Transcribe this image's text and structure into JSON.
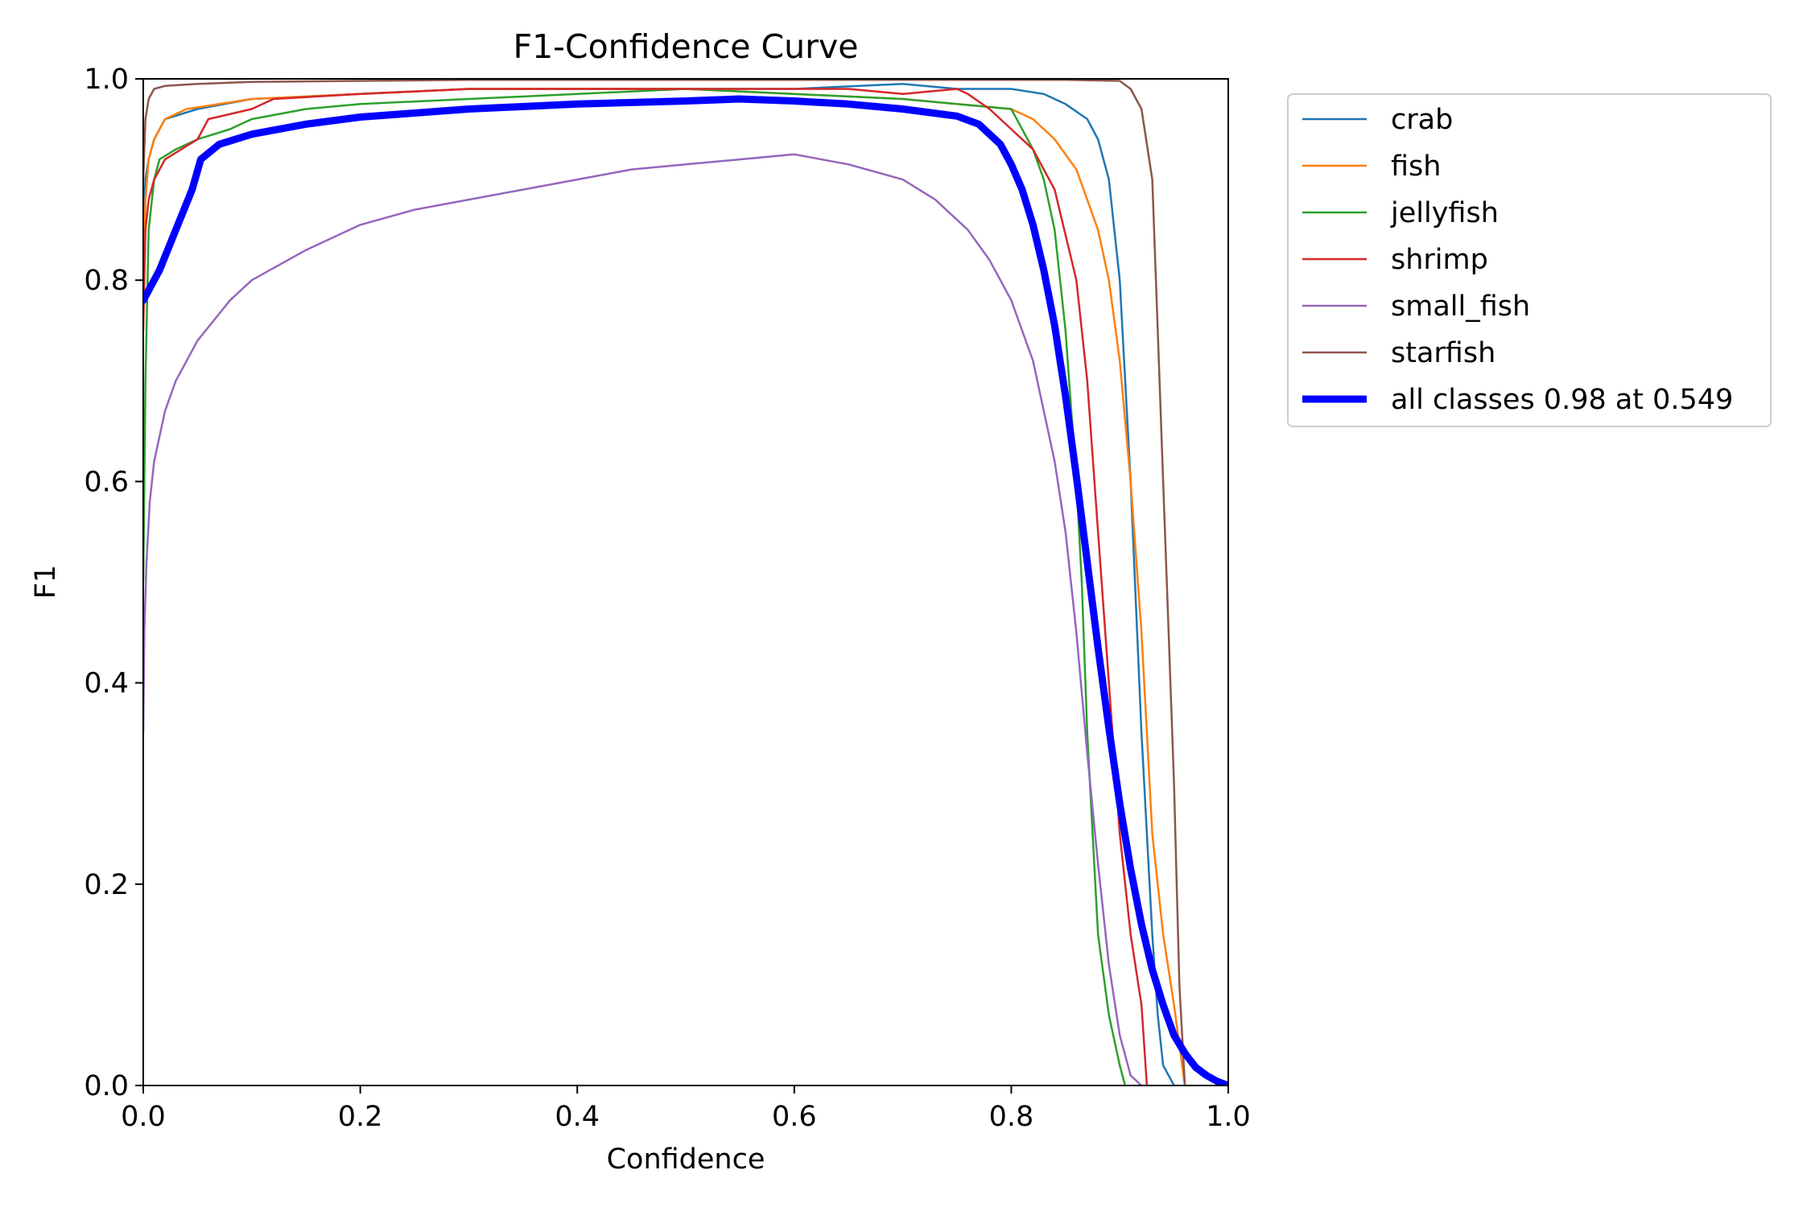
{
  "chart_data": {
    "type": "line",
    "title": "F1-Confidence Curve",
    "xlabel": "Confidence",
    "ylabel": "F1",
    "xlim": [
      0.0,
      1.0
    ],
    "ylim": [
      0.0,
      1.0
    ],
    "xticks": [
      "0.0",
      "0.2",
      "0.4",
      "0.6",
      "0.8",
      "1.0"
    ],
    "yticks": [
      "0.0",
      "0.2",
      "0.4",
      "0.6",
      "0.8",
      "1.0"
    ],
    "grid": false,
    "legend_position": "outside-top-right",
    "series": [
      {
        "name": "crab",
        "color": "#1f77b4",
        "x": [
          0.0,
          0.002,
          0.005,
          0.01,
          0.02,
          0.05,
          0.1,
          0.2,
          0.3,
          0.4,
          0.5,
          0.6,
          0.7,
          0.75,
          0.8,
          0.83,
          0.85,
          0.87,
          0.88,
          0.89,
          0.9,
          0.91,
          0.92,
          0.93,
          0.935,
          0.94,
          0.945,
          0.95
        ],
        "y": [
          0.85,
          0.9,
          0.92,
          0.94,
          0.96,
          0.97,
          0.98,
          0.985,
          0.99,
          0.99,
          0.99,
          0.99,
          0.995,
          0.99,
          0.99,
          0.985,
          0.975,
          0.96,
          0.94,
          0.9,
          0.8,
          0.6,
          0.35,
          0.15,
          0.07,
          0.02,
          0.01,
          0.0
        ]
      },
      {
        "name": "fish",
        "color": "#ff7f0e",
        "x": [
          0.0,
          0.002,
          0.005,
          0.01,
          0.02,
          0.04,
          0.1,
          0.2,
          0.3,
          0.4,
          0.5,
          0.6,
          0.7,
          0.75,
          0.8,
          0.82,
          0.84,
          0.86,
          0.87,
          0.88,
          0.89,
          0.9,
          0.91,
          0.92,
          0.93,
          0.94,
          0.95,
          0.955,
          0.96
        ],
        "y": [
          0.8,
          0.88,
          0.92,
          0.94,
          0.96,
          0.97,
          0.98,
          0.985,
          0.99,
          0.99,
          0.99,
          0.985,
          0.98,
          0.975,
          0.97,
          0.96,
          0.94,
          0.91,
          0.88,
          0.85,
          0.8,
          0.72,
          0.6,
          0.45,
          0.25,
          0.15,
          0.08,
          0.04,
          0.0
        ]
      },
      {
        "name": "jellyfish",
        "color": "#2ca02c",
        "x": [
          0.0,
          0.002,
          0.005,
          0.01,
          0.015,
          0.03,
          0.05,
          0.08,
          0.1,
          0.15,
          0.2,
          0.3,
          0.4,
          0.5,
          0.6,
          0.7,
          0.75,
          0.8,
          0.81,
          0.82,
          0.83,
          0.84,
          0.85,
          0.86,
          0.865,
          0.87,
          0.875,
          0.88,
          0.89,
          0.9,
          0.905
        ],
        "y": [
          0.5,
          0.7,
          0.85,
          0.9,
          0.92,
          0.93,
          0.94,
          0.95,
          0.96,
          0.97,
          0.975,
          0.98,
          0.985,
          0.99,
          0.985,
          0.98,
          0.975,
          0.97,
          0.95,
          0.93,
          0.9,
          0.85,
          0.75,
          0.6,
          0.5,
          0.35,
          0.25,
          0.15,
          0.07,
          0.02,
          0.0
        ]
      },
      {
        "name": "shrimp",
        "color": "#d62728",
        "x": [
          0.0,
          0.002,
          0.005,
          0.01,
          0.02,
          0.05,
          0.06,
          0.1,
          0.12,
          0.2,
          0.3,
          0.4,
          0.5,
          0.6,
          0.65,
          0.7,
          0.75,
          0.76,
          0.78,
          0.8,
          0.82,
          0.84,
          0.86,
          0.87,
          0.88,
          0.89,
          0.9,
          0.91,
          0.92,
          0.925
        ],
        "y": [
          0.75,
          0.85,
          0.88,
          0.9,
          0.92,
          0.94,
          0.96,
          0.97,
          0.98,
          0.985,
          0.99,
          0.99,
          0.99,
          0.99,
          0.99,
          0.985,
          0.99,
          0.985,
          0.97,
          0.95,
          0.93,
          0.89,
          0.8,
          0.7,
          0.55,
          0.4,
          0.25,
          0.15,
          0.08,
          0.0
        ]
      },
      {
        "name": "small_fish",
        "color": "#9467bd",
        "x": [
          0.0,
          0.001,
          0.003,
          0.006,
          0.01,
          0.02,
          0.03,
          0.05,
          0.08,
          0.1,
          0.15,
          0.2,
          0.25,
          0.3,
          0.35,
          0.4,
          0.45,
          0.5,
          0.55,
          0.6,
          0.65,
          0.7,
          0.73,
          0.76,
          0.78,
          0.8,
          0.82,
          0.84,
          0.85,
          0.86,
          0.87,
          0.88,
          0.89,
          0.9,
          0.91,
          0.92
        ],
        "y": [
          0.35,
          0.45,
          0.52,
          0.58,
          0.62,
          0.67,
          0.7,
          0.74,
          0.78,
          0.8,
          0.83,
          0.855,
          0.87,
          0.88,
          0.89,
          0.9,
          0.91,
          0.915,
          0.92,
          0.925,
          0.915,
          0.9,
          0.88,
          0.85,
          0.82,
          0.78,
          0.72,
          0.62,
          0.55,
          0.45,
          0.33,
          0.22,
          0.12,
          0.05,
          0.01,
          0.0
        ]
      },
      {
        "name": "starfish",
        "color": "#8c564b",
        "x": [
          0.0,
          0.002,
          0.005,
          0.01,
          0.02,
          0.05,
          0.1,
          0.2,
          0.3,
          0.4,
          0.5,
          0.6,
          0.7,
          0.8,
          0.85,
          0.9,
          0.91,
          0.92,
          0.93,
          0.935,
          0.94,
          0.945,
          0.95,
          0.955,
          0.96
        ],
        "y": [
          0.9,
          0.96,
          0.98,
          0.99,
          0.993,
          0.995,
          0.997,
          0.998,
          0.999,
          0.999,
          0.999,
          0.999,
          0.999,
          0.999,
          0.999,
          0.998,
          0.99,
          0.97,
          0.9,
          0.75,
          0.6,
          0.45,
          0.3,
          0.1,
          0.0
        ]
      },
      {
        "name": "all classes 0.98 at 0.549",
        "color": "#0000ff",
        "bold": true,
        "x": [
          0.0,
          0.015,
          0.03,
          0.045,
          0.053,
          0.07,
          0.1,
          0.15,
          0.2,
          0.3,
          0.4,
          0.5,
          0.549,
          0.6,
          0.65,
          0.7,
          0.75,
          0.77,
          0.79,
          0.8,
          0.81,
          0.82,
          0.83,
          0.84,
          0.85,
          0.86,
          0.87,
          0.88,
          0.89,
          0.9,
          0.91,
          0.92,
          0.93,
          0.94,
          0.95,
          0.96,
          0.97,
          0.98,
          0.99,
          1.0
        ],
        "y": [
          0.78,
          0.81,
          0.85,
          0.89,
          0.92,
          0.935,
          0.945,
          0.955,
          0.962,
          0.97,
          0.975,
          0.978,
          0.98,
          0.978,
          0.975,
          0.97,
          0.963,
          0.955,
          0.935,
          0.915,
          0.89,
          0.855,
          0.81,
          0.755,
          0.685,
          0.605,
          0.52,
          0.435,
          0.355,
          0.28,
          0.215,
          0.16,
          0.115,
          0.08,
          0.05,
          0.032,
          0.018,
          0.01,
          0.004,
          0.0
        ]
      }
    ]
  }
}
